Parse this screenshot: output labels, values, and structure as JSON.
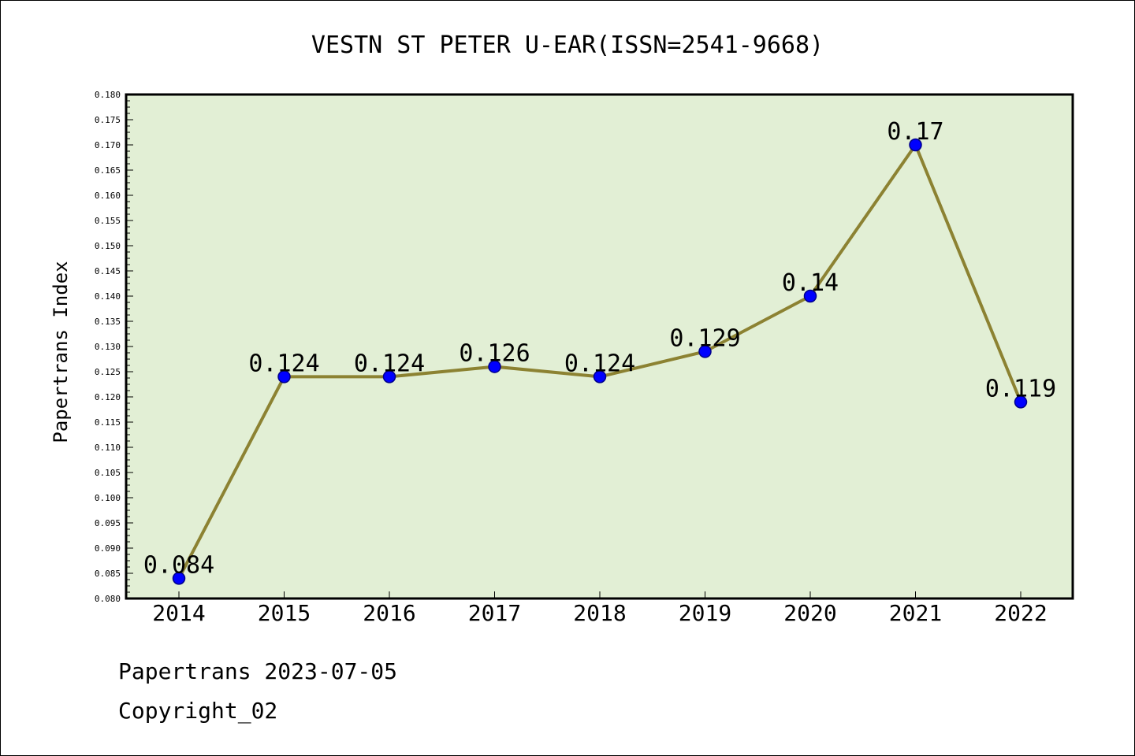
{
  "chart_data": {
    "type": "line",
    "title": "VESTN ST PETER U-EAR(ISSN=2541-9668)",
    "xlabel": "",
    "ylabel": "Papertrans Index",
    "categories": [
      "2014",
      "2015",
      "2016",
      "2017",
      "2018",
      "2019",
      "2020",
      "2021",
      "2022"
    ],
    "series": [
      {
        "values": [
          0.084,
          0.124,
          0.124,
          0.126,
          0.124,
          0.129,
          0.14,
          0.17,
          0.119
        ],
        "labels": [
          "0.084",
          "0.124",
          "0.124",
          "0.126",
          "0.124",
          "0.129",
          "0.14",
          "0.17",
          "0.119"
        ]
      }
    ],
    "ylim": [
      0.08,
      0.18
    ],
    "ytick_step": 0.005,
    "grid": false,
    "legend": "none",
    "colors": {
      "plot_background": "#e2efd5",
      "line": "#8c8232",
      "marker_fill": "#0000ff",
      "marker_edge": "#00008b"
    }
  },
  "footer": {
    "line1": "Papertrans 2023-07-05",
    "line2": "Copyright_02"
  }
}
